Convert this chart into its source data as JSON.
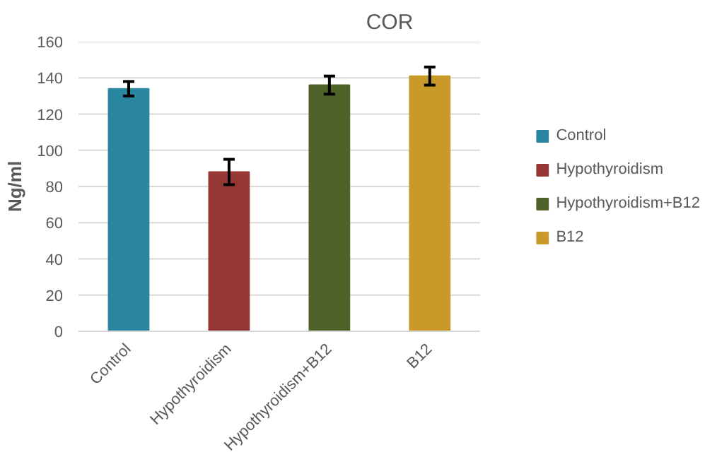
{
  "chart_data": {
    "type": "bar",
    "title": "COR",
    "ylabel": "Ng/ml",
    "categories": [
      "Control",
      "Hypothyroidism",
      "Hypothyroidism+B12",
      "B12"
    ],
    "series": [
      {
        "name": "Control",
        "color": "#2a869e",
        "values": [
          134,
          null,
          null,
          null
        ],
        "errors": [
          4,
          null,
          null,
          null
        ]
      },
      {
        "name": "Hypothyroidism",
        "color": "#953735",
        "values": [
          null,
          88,
          null,
          null
        ],
        "errors": [
          null,
          7,
          null,
          null
        ]
      },
      {
        "name": "Hypothyroidism+B12",
        "color": "#4f6228",
        "values": [
          null,
          null,
          136,
          null
        ],
        "errors": [
          null,
          null,
          5,
          null
        ]
      },
      {
        "name": "B12",
        "color": "#c99a2a",
        "values": [
          null,
          null,
          null,
          141
        ],
        "errors": [
          null,
          null,
          null,
          5
        ]
      }
    ],
    "ylim": [
      0,
      160
    ],
    "yticks": [
      0,
      20,
      40,
      60,
      80,
      100,
      120,
      140,
      160
    ],
    "grid": "y",
    "legend": "right"
  }
}
